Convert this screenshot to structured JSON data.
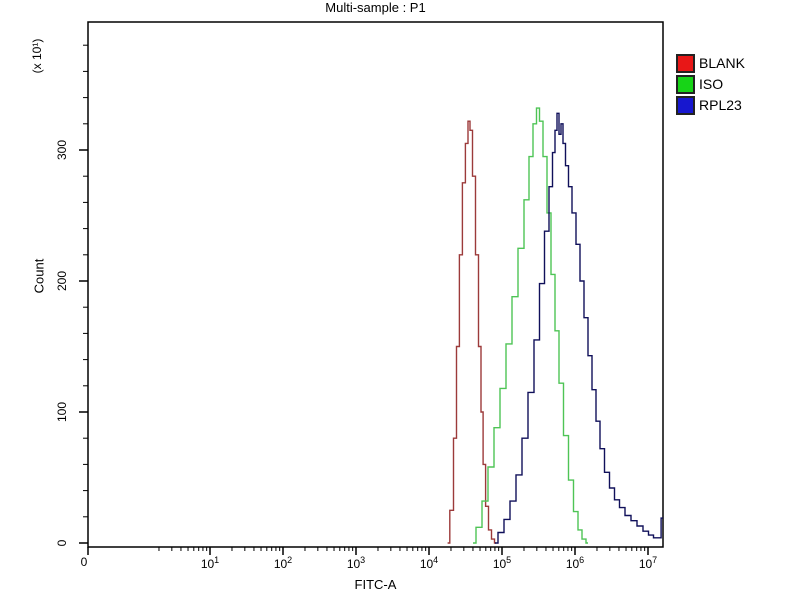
{
  "title": "Multi-sample : P1",
  "legend": {
    "position": "right",
    "items": [
      {
        "label": "BLANK",
        "color": "#e81717"
      },
      {
        "label": "ISO",
        "color": "#17d417"
      },
      {
        "label": "RPL23",
        "color": "#1717cf"
      }
    ]
  },
  "chart_data": {
    "type": "line",
    "subtype": "flow-cytometry-overlay-histogram",
    "title": "Multi-sample : P1",
    "xlabel": "FITC-A",
    "ylabel": "Count",
    "y_unit_label": "(x 10¹)",
    "x_scale": "log-with-zero-origin",
    "x_tick_base": "10",
    "x_zero_label": "0",
    "x_tick_exponents": [
      1,
      2,
      3,
      4,
      5,
      6,
      7
    ],
    "x_ticks_display": [
      "0",
      "10¹",
      "10²",
      "10³",
      "10⁴",
      "10⁵",
      "10⁶",
      "10⁷"
    ],
    "xlim": [
      0,
      16000000
    ],
    "y_ticks": [
      0,
      100,
      200,
      300
    ],
    "y_minor_step": 20,
    "ylim": [
      0,
      398
    ],
    "grid": false,
    "legend_position": "right",
    "series": [
      {
        "name": "BLANK",
        "legend_color": "#e81717",
        "line_color": "#9c3a3a",
        "peak_x": 35300,
        "peak_count": 322,
        "points": [
          [
            18000,
            0
          ],
          [
            20600,
            25
          ],
          [
            22700,
            80
          ],
          [
            24900,
            150
          ],
          [
            27400,
            220
          ],
          [
            30100,
            275
          ],
          [
            33100,
            305
          ],
          [
            35300,
            322
          ],
          [
            37600,
            315
          ],
          [
            41300,
            280
          ],
          [
            45500,
            220
          ],
          [
            50000,
            150
          ],
          [
            53300,
            100
          ],
          [
            56800,
            60
          ],
          [
            62400,
            28
          ],
          [
            68500,
            10
          ],
          [
            75300,
            3
          ],
          [
            82700,
            0
          ]
        ]
      },
      {
        "name": "ISO",
        "legend_color": "#17d417",
        "line_color": "#4ec455",
        "peak_x": 311000,
        "peak_count": 332,
        "points": [
          [
            40100,
            0
          ],
          [
            48400,
            12
          ],
          [
            58500,
            32
          ],
          [
            70600,
            58
          ],
          [
            85400,
            88
          ],
          [
            103000,
            118
          ],
          [
            124800,
            152
          ],
          [
            150700,
            188
          ],
          [
            182000,
            225
          ],
          [
            219800,
            262
          ],
          [
            249500,
            295
          ],
          [
            283000,
            320
          ],
          [
            311000,
            332
          ],
          [
            342000,
            322
          ],
          [
            388000,
            295
          ],
          [
            440000,
            252
          ],
          [
            500000,
            205
          ],
          [
            566000,
            162
          ],
          [
            643000,
            122
          ],
          [
            753000,
            82
          ],
          [
            881000,
            48
          ],
          [
            1033000,
            24
          ],
          [
            1170000,
            10
          ],
          [
            1327000,
            3
          ],
          [
            1506000,
            0
          ]
        ]
      },
      {
        "name": "RPL23",
        "legend_color": "#1717cf",
        "line_color": "#10105a",
        "peak_x": 585000,
        "peak_count": 328,
        "points": [
          [
            80200,
            0
          ],
          [
            96800,
            8
          ],
          [
            117000,
            18
          ],
          [
            141500,
            32
          ],
          [
            171000,
            52
          ],
          [
            206500,
            80
          ],
          [
            249500,
            115
          ],
          [
            301000,
            155
          ],
          [
            353000,
            198
          ],
          [
            413000,
            238
          ],
          [
            469000,
            272
          ],
          [
            515000,
            298
          ],
          [
            549000,
            315
          ],
          [
            585000,
            328
          ],
          [
            624000,
            312
          ],
          [
            664000,
            320
          ],
          [
            706000,
            305
          ],
          [
            776000,
            288
          ],
          [
            855000,
            272
          ],
          [
            969000,
            252
          ],
          [
            1099000,
            228
          ],
          [
            1247000,
            200
          ],
          [
            1416000,
            172
          ],
          [
            1604000,
            143
          ],
          [
            1820000,
            117
          ],
          [
            2065000,
            93
          ],
          [
            2344000,
            72
          ],
          [
            2742000,
            54
          ],
          [
            3214000,
            42
          ],
          [
            3758000,
            33
          ],
          [
            4406000,
            27
          ],
          [
            5321000,
            21
          ],
          [
            6430000,
            17
          ],
          [
            7762000,
            13
          ],
          [
            9397000,
            9
          ],
          [
            10990000,
            6
          ],
          [
            12880000,
            4
          ],
          [
            15060000,
            4
          ],
          [
            15200000,
            19
          ],
          [
            16100000,
            19
          ]
        ]
      }
    ]
  }
}
